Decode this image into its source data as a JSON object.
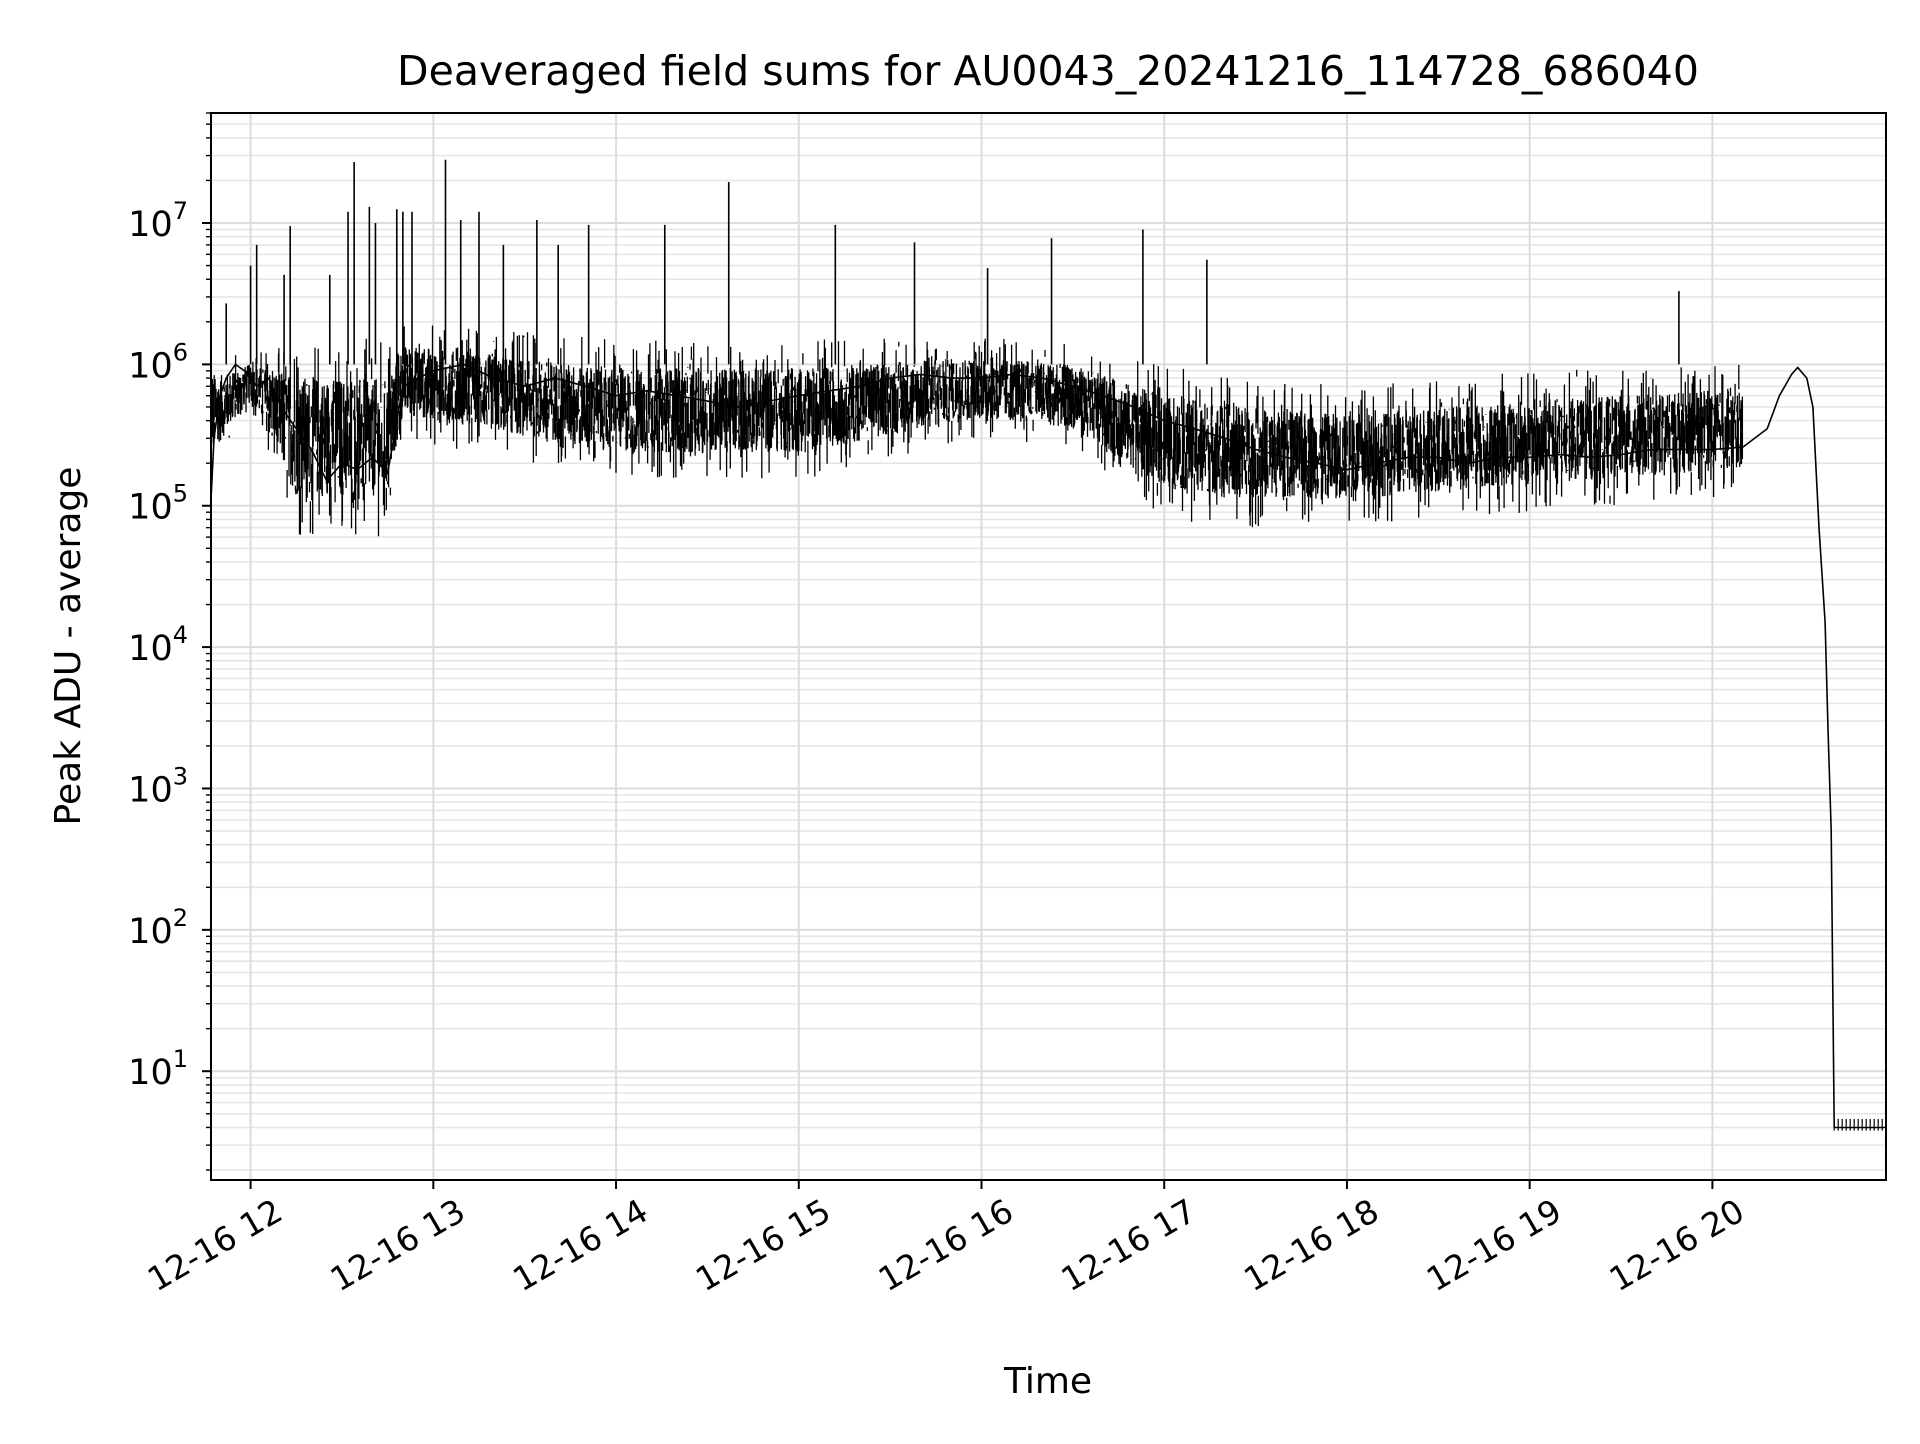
{
  "chart_data": {
    "type": "line",
    "title": "Deaveraged field sums for AU0043_20241216_114728_686040",
    "xlabel": "Time",
    "ylabel": "Peak ADU - average",
    "x_scale": "time",
    "y_scale": "log",
    "xlim": [
      "2024-12-16 11:47",
      "2024-12-16 20:57"
    ],
    "ylim": [
      1.7,
      60000000
    ],
    "x_ticks": [
      "2024-12-16 12:00",
      "2024-12-16 13:00",
      "2024-12-16 14:00",
      "2024-12-16 15:00",
      "2024-12-16 16:00",
      "2024-12-16 17:00",
      "2024-12-16 18:00",
      "2024-12-16 19:00",
      "2024-12-16 20:00"
    ],
    "x_tick_labels": [
      "12-16 12",
      "12-16 13",
      "12-16 14",
      "12-16 15",
      "12-16 16",
      "12-16 17",
      "12-16 18",
      "12-16 19",
      "12-16 20"
    ],
    "y_ticks": [
      {
        "base": "10",
        "exp": "1",
        "value": 10
      },
      {
        "base": "10",
        "exp": "2",
        "value": 100
      },
      {
        "base": "10",
        "exp": "3",
        "value": 1000
      },
      {
        "base": "10",
        "exp": "4",
        "value": 10000
      },
      {
        "base": "10",
        "exp": "5",
        "value": 100000
      },
      {
        "base": "10",
        "exp": "6",
        "value": 1000000
      },
      {
        "base": "10",
        "exp": "7",
        "value": 10000000
      }
    ],
    "grid": "major and minor",
    "series": [
      {
        "color": "#000000",
        "points": [
          [
            "2024-12-16 11:47",
            110000
          ],
          [
            "2024-12-16 11:48",
            300000
          ],
          [
            "2024-12-16 11:50",
            600000
          ],
          [
            "2024-12-16 11:52",
            800000
          ],
          [
            "2024-12-16 11:55",
            1000000
          ],
          [
            "2024-12-16 11:58",
            900000
          ],
          [
            "2024-12-16 12:02",
            700000
          ],
          [
            "2024-12-16 12:06",
            800000
          ],
          [
            "2024-12-16 12:10",
            500000
          ],
          [
            "2024-12-16 12:15",
            350000
          ],
          [
            "2024-12-16 12:20",
            250000
          ],
          [
            "2024-12-16 12:25",
            150000
          ],
          [
            "2024-12-16 12:30",
            200000
          ],
          [
            "2024-12-16 12:35",
            180000
          ],
          [
            "2024-12-16 12:40",
            220000
          ],
          [
            "2024-12-16 12:45",
            170000
          ],
          [
            "2024-12-16 12:50",
            700000
          ],
          [
            "2024-12-16 12:55",
            800000
          ],
          [
            "2024-12-16 13:00",
            900000
          ],
          [
            "2024-12-16 13:10",
            1000000
          ],
          [
            "2024-12-16 13:20",
            800000
          ],
          [
            "2024-12-16 13:30",
            700000
          ],
          [
            "2024-12-16 13:40",
            800000
          ],
          [
            "2024-12-16 13:50",
            700000
          ],
          [
            "2024-12-16 14:00",
            600000
          ],
          [
            "2024-12-16 14:10",
            650000
          ],
          [
            "2024-12-16 14:20",
            600000
          ],
          [
            "2024-12-16 14:30",
            550000
          ],
          [
            "2024-12-16 14:40",
            500000
          ],
          [
            "2024-12-16 14:50",
            550000
          ],
          [
            "2024-12-16 15:00",
            600000
          ],
          [
            "2024-12-16 15:10",
            650000
          ],
          [
            "2024-12-16 15:20",
            700000
          ],
          [
            "2024-12-16 15:30",
            800000
          ],
          [
            "2024-12-16 15:40",
            850000
          ],
          [
            "2024-12-16 15:50",
            800000
          ],
          [
            "2024-12-16 16:00",
            800000
          ],
          [
            "2024-12-16 16:10",
            850000
          ],
          [
            "2024-12-16 16:20",
            800000
          ],
          [
            "2024-12-16 16:30",
            700000
          ],
          [
            "2024-12-16 16:40",
            600000
          ],
          [
            "2024-12-16 16:50",
            500000
          ],
          [
            "2024-12-16 17:00",
            400000
          ],
          [
            "2024-12-16 17:10",
            350000
          ],
          [
            "2024-12-16 17:20",
            300000
          ],
          [
            "2024-12-16 17:30",
            250000
          ],
          [
            "2024-12-16 17:40",
            220000
          ],
          [
            "2024-12-16 17:50",
            200000
          ],
          [
            "2024-12-16 18:00",
            180000
          ],
          [
            "2024-12-16 18:10",
            200000
          ],
          [
            "2024-12-16 18:20",
            220000
          ],
          [
            "2024-12-16 18:30",
            220000
          ],
          [
            "2024-12-16 18:40",
            200000
          ],
          [
            "2024-12-16 18:50",
            220000
          ],
          [
            "2024-12-16 19:00",
            220000
          ],
          [
            "2024-12-16 19:10",
            230000
          ],
          [
            "2024-12-16 19:20",
            220000
          ],
          [
            "2024-12-16 19:30",
            230000
          ],
          [
            "2024-12-16 19:40",
            250000
          ],
          [
            "2024-12-16 19:50",
            250000
          ],
          [
            "2024-12-16 20:00",
            250000
          ],
          [
            "2024-12-16 20:10",
            260000
          ],
          [
            "2024-12-16 20:18",
            350000
          ],
          [
            "2024-12-16 20:22",
            600000
          ],
          [
            "2024-12-16 20:26",
            850000
          ],
          [
            "2024-12-16 20:28",
            950000
          ],
          [
            "2024-12-16 20:31",
            800000
          ],
          [
            "2024-12-16 20:33",
            500000
          ],
          [
            "2024-12-16 20:35",
            70000
          ],
          [
            "2024-12-16 20:37",
            15000
          ],
          [
            "2024-12-16 20:38",
            2500
          ],
          [
            "2024-12-16 20:39",
            500
          ],
          [
            "2024-12-16 20:40",
            4
          ],
          [
            "2024-12-16 20:57",
            4
          ]
        ],
        "noise_band": [
          [
            "2024-12-16 11:47",
            150000,
            1200000
          ],
          [
            "2024-12-16 12:00",
            500000,
            1200000
          ],
          [
            "2024-12-16 12:15",
            60000,
            1600000
          ],
          [
            "2024-12-16 12:45",
            60000,
            1500000
          ],
          [
            "2024-12-16 12:50",
            300000,
            2000000
          ],
          [
            "2024-12-16 14:00",
            150000,
            1500000
          ],
          [
            "2024-12-16 15:00",
            150000,
            1500000
          ],
          [
            "2024-12-16 16:00",
            300000,
            1600000
          ],
          [
            "2024-12-16 16:30",
            250000,
            1400000
          ],
          [
            "2024-12-16 17:00",
            80000,
            1000000
          ],
          [
            "2024-12-16 17:30",
            70000,
            800000
          ],
          [
            "2024-12-16 18:00",
            70000,
            700000
          ],
          [
            "2024-12-16 19:00",
            90000,
            900000
          ],
          [
            "2024-12-16 20:10",
            120000,
            1000000
          ]
        ],
        "spikes": [
          [
            "2024-12-16 11:52",
            2700000
          ],
          [
            "2024-12-16 12:00",
            5000000
          ],
          [
            "2024-12-16 12:02",
            7000000
          ],
          [
            "2024-12-16 12:11",
            4300000
          ],
          [
            "2024-12-16 12:13",
            9500000
          ],
          [
            "2024-12-16 12:26",
            4300000
          ],
          [
            "2024-12-16 12:32",
            12000000
          ],
          [
            "2024-12-16 12:34",
            27000000
          ],
          [
            "2024-12-16 12:39",
            13000000
          ],
          [
            "2024-12-16 12:41",
            10000000
          ],
          [
            "2024-12-16 12:48",
            12500000
          ],
          [
            "2024-12-16 12:50",
            12000000
          ],
          [
            "2024-12-16 12:53",
            12000000
          ],
          [
            "2024-12-16 13:04",
            28000000
          ],
          [
            "2024-12-16 13:09",
            10500000
          ],
          [
            "2024-12-16 13:15",
            12000000
          ],
          [
            "2024-12-16 13:23",
            7000000
          ],
          [
            "2024-12-16 13:34",
            10500000
          ],
          [
            "2024-12-16 13:41",
            7000000
          ],
          [
            "2024-12-16 13:51",
            9700000
          ],
          [
            "2024-12-16 14:16",
            9700000
          ],
          [
            "2024-12-16 14:37",
            19500000
          ],
          [
            "2024-12-16 15:12",
            9700000
          ],
          [
            "2024-12-16 15:38",
            7300000
          ],
          [
            "2024-12-16 16:02",
            4800000
          ],
          [
            "2024-12-16 16:23",
            7800000
          ],
          [
            "2024-12-16 16:53",
            9000000
          ],
          [
            "2024-12-16 17:14",
            5500000
          ],
          [
            "2024-12-16 19:49",
            3300000
          ]
        ]
      }
    ]
  }
}
